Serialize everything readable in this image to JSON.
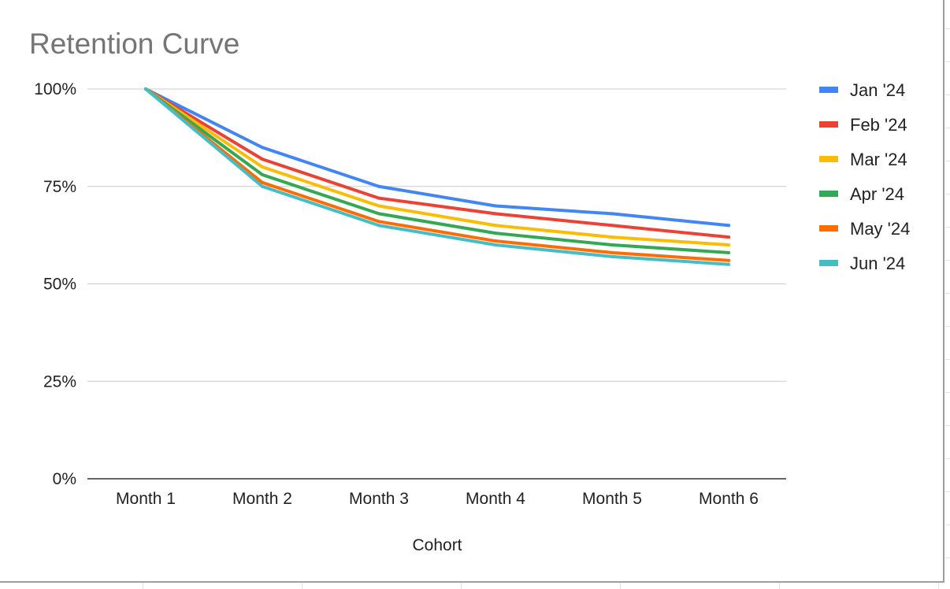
{
  "chart_data": {
    "type": "line",
    "title": "Retention Curve",
    "xlabel": "Cohort",
    "ylabel": "",
    "categories": [
      "Month 1",
      "Month 2",
      "Month 3",
      "Month 4",
      "Month 5",
      "Month 6"
    ],
    "ylim": [
      0,
      100
    ],
    "yticks": [
      0,
      25,
      50,
      75,
      100
    ],
    "ytick_labels": [
      "0%",
      "25%",
      "50%",
      "75%",
      "100%"
    ],
    "grid": true,
    "legend_position": "right",
    "series": [
      {
        "name": "Jan '24",
        "color": "#4285f4",
        "values": [
          100,
          85,
          75,
          70,
          68,
          65
        ]
      },
      {
        "name": "Feb '24",
        "color": "#ea4335",
        "values": [
          100,
          82,
          72,
          68,
          65,
          62
        ]
      },
      {
        "name": "Mar '24",
        "color": "#fbbc04",
        "values": [
          100,
          80,
          70,
          65,
          62,
          60
        ]
      },
      {
        "name": "Apr '24",
        "color": "#34a853",
        "values": [
          100,
          78,
          68,
          63,
          60,
          58
        ]
      },
      {
        "name": "May '24",
        "color": "#ff6d01",
        "values": [
          100,
          76,
          66,
          61,
          58,
          56
        ]
      },
      {
        "name": "Jun '24",
        "color": "#46bdc6",
        "values": [
          100,
          75,
          65,
          60,
          57,
          55
        ]
      }
    ]
  }
}
